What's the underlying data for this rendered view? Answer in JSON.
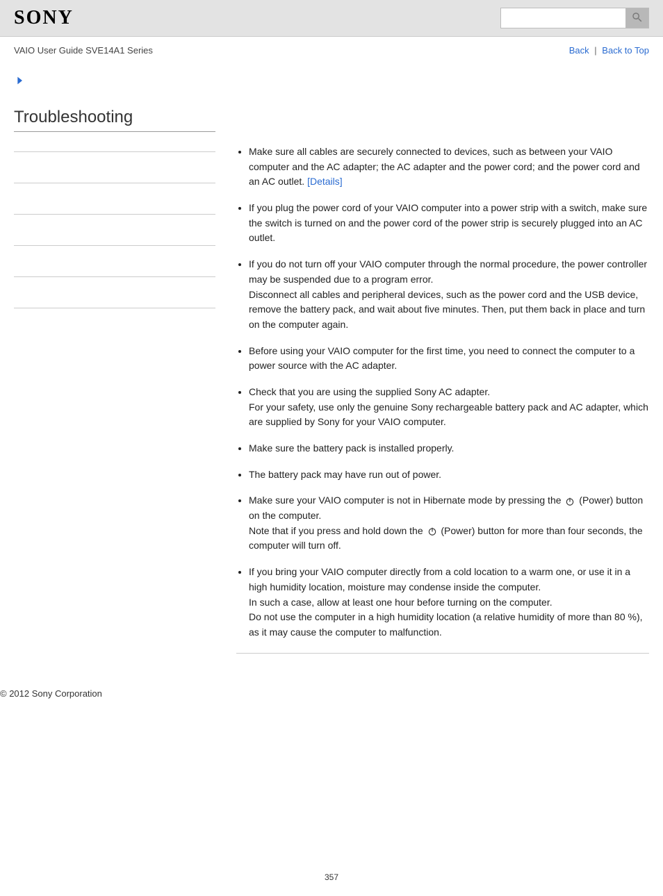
{
  "header": {
    "logo_text": "SONY",
    "search_placeholder": ""
  },
  "subheader": {
    "guide_title": "VAIO User Guide SVE14A1 Series",
    "back_label": "Back",
    "back_to_top_label": "Back to Top",
    "separator": "|"
  },
  "sidebar": {
    "page_title": "Troubleshooting",
    "divider_count": 6
  },
  "content": {
    "details_link_text": "[Details]",
    "power_label": "(Power)",
    "items": [
      {
        "lines": [
          "Make sure all cables are securely connected to devices, such as between your VAIO computer and the AC adapter; the AC adapter and the power cord; and the power cord and an AC outlet."
        ],
        "has_details": true
      },
      {
        "lines": [
          "If you plug the power cord of your VAIO computer into a power strip with a switch, make sure the switch is turned on and the power cord of the power strip is securely plugged into an AC outlet."
        ]
      },
      {
        "lines": [
          "If you do not turn off your VAIO computer through the normal procedure, the power controller may be suspended due to a program error.",
          "Disconnect all cables and peripheral devices, such as the power cord and the USB device, remove the battery pack, and wait about five minutes. Then, put them back in place and turn on the computer again."
        ]
      },
      {
        "lines": [
          "Before using your VAIO computer for the first time, you need to connect the computer to a power source with the AC adapter."
        ]
      },
      {
        "lines": [
          "Check that you are using the supplied Sony AC adapter.",
          "For your safety, use only the genuine Sony rechargeable battery pack and AC adapter, which are supplied by Sony for your VAIO computer."
        ]
      },
      {
        "lines": [
          "Make sure the battery pack is installed properly."
        ]
      },
      {
        "lines": [
          "The battery pack may have run out of power."
        ]
      },
      {
        "power_item": true,
        "pre1": "Make sure your VAIO computer is not in Hibernate mode by pressing the",
        "post1": "button on the computer.",
        "pre2": "Note that if you press and hold down the",
        "post2": "button for more than four seconds, the computer will turn off."
      },
      {
        "lines": [
          "If you bring your VAIO computer directly from a cold location to a warm one, or use it in a high humidity location, moisture may condense inside the computer.",
          "In such a case, allow at least one hour before turning on the computer.",
          "Do not use the computer in a high humidity location (a relative humidity of more than 80 %), as it may cause the computer to malfunction."
        ]
      }
    ]
  },
  "footer": {
    "copyright": "© 2012 Sony Corporation",
    "page_number": "357"
  },
  "colors": {
    "link": "#2a6bd1",
    "header_bg": "#e3e3e3",
    "text": "#333333"
  }
}
